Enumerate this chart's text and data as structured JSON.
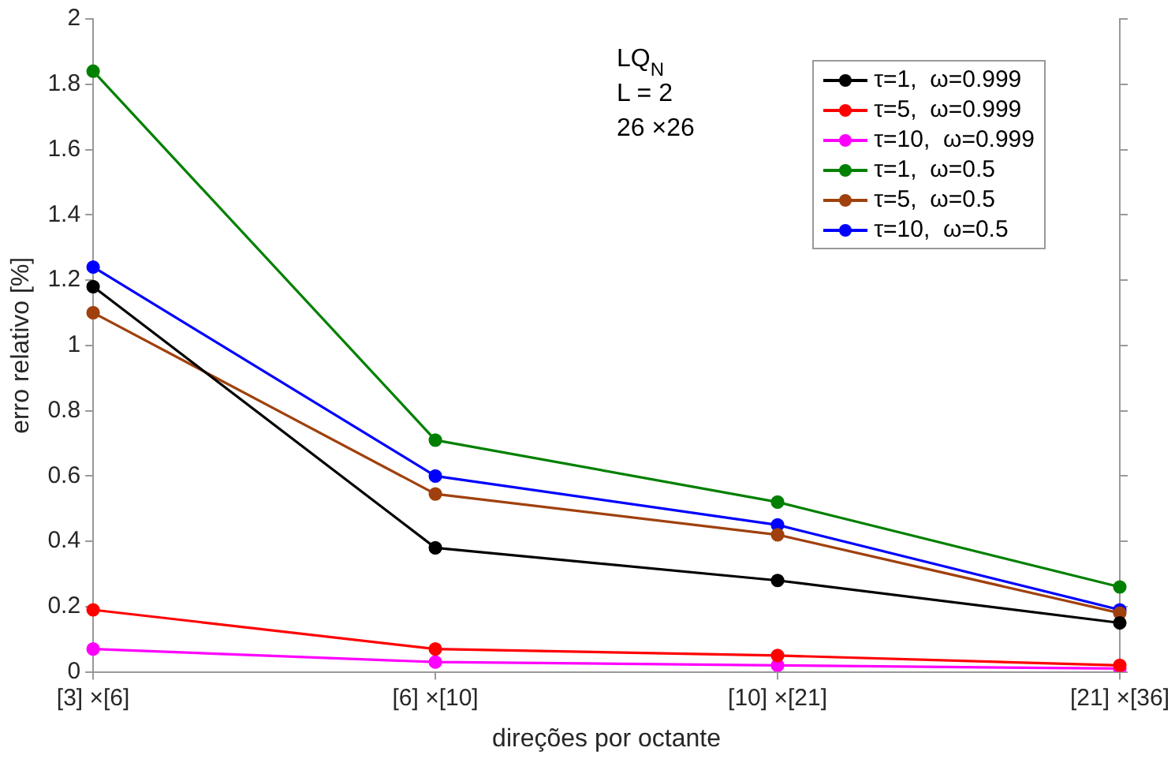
{
  "chart_data": {
    "type": "line",
    "xlabel": "direções por octante",
    "ylabel": "erro relativo [%]",
    "categories": [
      "[3] ×[6]",
      "[6] ×[10]",
      "[10] ×[21]",
      "[21] ×[36]"
    ],
    "ylim": [
      0,
      2
    ],
    "yticks": [
      0,
      0.2,
      0.4,
      0.6,
      0.8,
      1,
      1.2,
      1.4,
      1.6,
      1.8,
      2
    ],
    "series": [
      {
        "name": "τ=1,  ω=0.999",
        "color": "#000000",
        "values": [
          1.18,
          0.38,
          0.28,
          0.15
        ]
      },
      {
        "name": "τ=5,  ω=0.999",
        "color": "#ff0000",
        "values": [
          0.19,
          0.07,
          0.05,
          0.02
        ]
      },
      {
        "name": "τ=10,  ω=0.999",
        "color": "#ff00ff",
        "values": [
          0.07,
          0.03,
          0.02,
          0.01
        ]
      },
      {
        "name": "τ=1,  ω=0.5",
        "color": "#008000",
        "values": [
          1.84,
          0.71,
          0.52,
          0.26
        ]
      },
      {
        "name": "τ=5,  ω=0.5",
        "color": "#a0410d",
        "values": [
          1.1,
          0.545,
          0.42,
          0.18
        ]
      },
      {
        "name": "τ=10,  ω=0.5",
        "color": "#0000ff",
        "values": [
          1.24,
          0.6,
          0.45,
          0.19
        ]
      }
    ],
    "annotations": [
      "LQ$_{N}$",
      "L = 2",
      "26 ×26"
    ],
    "legend": "top right",
    "grid": false,
    "marker": "circle",
    "line_style": "solid"
  }
}
